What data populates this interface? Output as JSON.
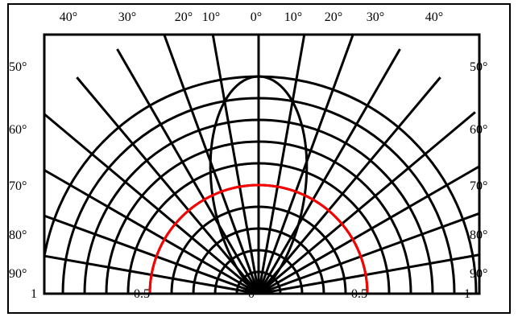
{
  "chart_data": {
    "type": "polar-intensity",
    "colors": {
      "grid": "#000000",
      "curve": "#ff0000",
      "background": "#ffffff"
    },
    "top_tick_labels": [
      "40°",
      "30°",
      "20°",
      "10°",
      "0°",
      "10°",
      "20°",
      "30°",
      "40°"
    ],
    "side_tick_labels_left": [
      "50°",
      "60°",
      "70°",
      "80°",
      "90°"
    ],
    "side_tick_labels_right": [
      "50°",
      "60°",
      "70°",
      "80°",
      "90°"
    ],
    "radial_tick_labels": [
      "1",
      "0.5",
      "0",
      "0.5",
      "1"
    ],
    "radial_ring_values": [
      0.1,
      0.2,
      0.3,
      0.4,
      0.5,
      0.6,
      0.7,
      0.8,
      0.9,
      1.0
    ],
    "angle_lines_deg": [
      -90,
      -80,
      -70,
      -60,
      -50,
      -40,
      -30,
      -20,
      -10,
      0,
      10,
      20,
      30,
      40,
      50,
      60,
      70,
      80,
      90
    ],
    "series": [
      {
        "shape": "circle",
        "radius": 0.5,
        "color": "#ff0000"
      },
      {
        "shape": "lobe",
        "radius": 1.0,
        "color": "#000000"
      }
    ]
  }
}
